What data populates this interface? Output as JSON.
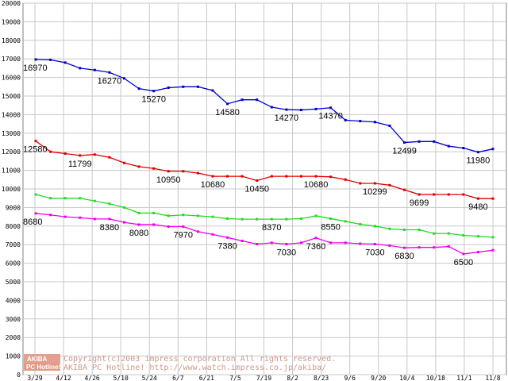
{
  "chart_data": {
    "type": "line",
    "title": "",
    "xlabel": "",
    "ylabel": "",
    "ylim": [
      0,
      20000
    ],
    "ytick_step": 1000,
    "grid": true,
    "x_tick_labels": [
      "3/29",
      "4/12",
      "4/26",
      "5/10",
      "5/24",
      "6/7",
      "6/21",
      "7/5",
      "7/19",
      "8/2",
      "8/23",
      "9/6",
      "9/20",
      "10/4",
      "10/18",
      "11/1",
      "11/8"
    ],
    "series": [
      {
        "color": "#0000cc",
        "values": [
          16970,
          16950,
          16800,
          16500,
          16400,
          16270,
          15950,
          15400,
          15270,
          15450,
          15500,
          15500,
          15300,
          14580,
          14800,
          14800,
          14400,
          14270,
          14250,
          14300,
          14370,
          13700,
          13650,
          13600,
          13400,
          12499,
          12550,
          12550,
          12300,
          12200,
          11980,
          12150
        ],
        "labels": [
          {
            "i": 0,
            "text": "16970"
          },
          {
            "i": 5,
            "text": "16270"
          },
          {
            "i": 8,
            "text": "15270"
          },
          {
            "i": 13,
            "text": "14580"
          },
          {
            "i": 17,
            "text": "14270"
          },
          {
            "i": 20,
            "text": "14370"
          },
          {
            "i": 25,
            "text": "12499"
          },
          {
            "i": 30,
            "text": "11980"
          }
        ]
      },
      {
        "color": "#dd0000",
        "values": [
          12580,
          12000,
          11900,
          11799,
          11850,
          11700,
          11400,
          11200,
          11100,
          10950,
          10950,
          10850,
          10680,
          10680,
          10680,
          10450,
          10680,
          10680,
          10680,
          10680,
          10650,
          10500,
          10300,
          10299,
          10200,
          9950,
          9699,
          9700,
          9700,
          9700,
          9480,
          9480
        ],
        "labels": [
          {
            "i": 0,
            "text": "12580"
          },
          {
            "i": 3,
            "text": "11799"
          },
          {
            "i": 9,
            "text": "10950"
          },
          {
            "i": 12,
            "text": "10680"
          },
          {
            "i": 15,
            "text": "10450"
          },
          {
            "i": 19,
            "text": "10680"
          },
          {
            "i": 23,
            "text": "10299"
          },
          {
            "i": 26,
            "text": "9699"
          },
          {
            "i": 30,
            "text": "9480"
          }
        ]
      },
      {
        "color": "#22dd22",
        "values": [
          9700,
          9500,
          9500,
          9500,
          9350,
          9200,
          9000,
          8700,
          8700,
          8550,
          8600,
          8550,
          8500,
          8400,
          8370,
          8370,
          8370,
          8370,
          8400,
          8550,
          8400,
          8250,
          8100,
          8000,
          7850,
          7800,
          7800,
          7600,
          7600,
          7500,
          7450,
          7400
        ],
        "labels": []
      },
      {
        "color": "#ee00ee",
        "values": [
          8680,
          8600,
          8500,
          8450,
          8380,
          8380,
          8200,
          8080,
          8080,
          7970,
          7970,
          7700,
          7550,
          7380,
          7200,
          7030,
          7100,
          7030,
          7100,
          7360,
          7100,
          7100,
          7050,
          7030,
          6950,
          6830,
          6850,
          6850,
          6900,
          6500,
          6600,
          6700
        ],
        "labels": [
          {
            "i": 0,
            "text": "8680"
          },
          {
            "i": 5,
            "text": "8380"
          },
          {
            "i": 7,
            "text": "8080"
          },
          {
            "i": 10,
            "text": "7970"
          },
          {
            "i": 13,
            "text": "7380"
          },
          {
            "i": 17,
            "text": "7030"
          },
          {
            "i": 19,
            "text": "7360"
          },
          {
            "i": 23,
            "text": "7030"
          },
          {
            "i": 25,
            "text": "6830"
          },
          {
            "i": 29,
            "text": "6500"
          }
        ]
      },
      {
        "color": "#22dd22",
        "values": [],
        "labels": [
          {
            "i": 16,
            "text": "8370"
          },
          {
            "i": 20,
            "text": "8550"
          },
          {
            "i": 5,
            "text": "8380"
          }
        ]
      }
    ]
  },
  "watermark": {
    "logo_top": "AKIBA",
    "logo_bottom": "PC Hotline!",
    "line1": "Copyright(c)2003 impress corporation All rights reserved.",
    "line2": "AKIBA PC Hotline!  http://www.watch.impress.co.jp/akiba/"
  },
  "colors": {
    "grid": "#c8c8c8",
    "axis": "#808080"
  }
}
